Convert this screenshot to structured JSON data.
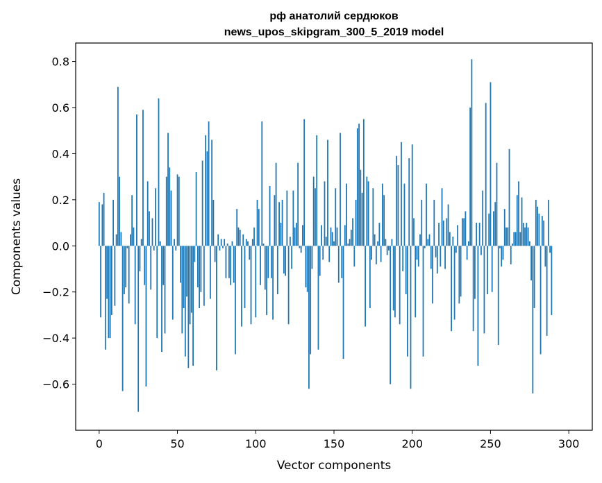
{
  "chart_data": {
    "type": "bar",
    "title": "рф анатолий сердюков",
    "subtitle": "news_upos_skipgram_300_5_2019 model",
    "xlabel": "Vector components",
    "ylabel": "Components values",
    "xlim": [
      -15,
      315
    ],
    "ylim": [
      -0.8,
      0.88
    ],
    "x_ticks": [
      {
        "value": 0,
        "label": "0"
      },
      {
        "value": 50,
        "label": "50"
      },
      {
        "value": 100,
        "label": "100"
      },
      {
        "value": 150,
        "label": "150"
      },
      {
        "value": 200,
        "label": "200"
      },
      {
        "value": 250,
        "label": "250"
      },
      {
        "value": 300,
        "label": "300"
      }
    ],
    "y_ticks": [
      {
        "value": -0.6,
        "label": "−0.6"
      },
      {
        "value": -0.4,
        "label": "−0.4"
      },
      {
        "value": -0.2,
        "label": "−0.2"
      },
      {
        "value": 0.0,
        "label": "0.0"
      },
      {
        "value": 0.2,
        "label": "0.2"
      },
      {
        "value": 0.4,
        "label": "0.4"
      },
      {
        "value": 0.6,
        "label": "0.6"
      },
      {
        "value": 0.8,
        "label": "0.8"
      }
    ],
    "bar_color": "#1f77b4",
    "grid": false,
    "values": [
      0.19,
      -0.31,
      0.18,
      0.23,
      -0.45,
      -0.23,
      -0.4,
      -0.4,
      -0.3,
      0.2,
      -0.26,
      0.05,
      0.69,
      0.3,
      0.06,
      -0.63,
      -0.21,
      -0.18,
      -0.01,
      -0.25,
      0.05,
      0.22,
      0.08,
      -0.34,
      0.57,
      -0.72,
      -0.11,
      0.03,
      0.59,
      -0.17,
      -0.61,
      0.28,
      0.15,
      -0.19,
      0.12,
      -0.02,
      0.25,
      -0.4,
      0.64,
      0.02,
      -0.46,
      -0.17,
      -0.38,
      0.3,
      0.49,
      0.34,
      0.24,
      -0.32,
      0.03,
      -0.02,
      0.31,
      0.3,
      -0.16,
      -0.38,
      -0.27,
      -0.48,
      -0.22,
      -0.53,
      -0.34,
      -0.29,
      -0.52,
      -0.07,
      0.32,
      -0.18,
      -0.27,
      -0.2,
      0.37,
      -0.26,
      0.48,
      0.41,
      0.54,
      -0.23,
      0.46,
      0.2,
      -0.07,
      -0.54,
      0.05,
      -0.02,
      0.03,
      -0.01,
      0.03,
      -0.14,
      0.01,
      -0.14,
      -0.17,
      0.02,
      -0.16,
      -0.47,
      0.16,
      0.08,
      0.07,
      -0.35,
      0.05,
      -0.27,
      0.03,
      0.02,
      -0.06,
      -0.34,
      0.03,
      0.08,
      -0.31,
      0.2,
      0.16,
      -0.17,
      0.54,
      0.01,
      -0.19,
      -0.3,
      -0.14,
      0.26,
      -0.14,
      -0.32,
      0.22,
      0.36,
      -0.21,
      0.19,
      0.1,
      0.2,
      -0.12,
      -0.13,
      0.24,
      -0.34,
      0.04,
      -0.1,
      0.24,
      0.08,
      0.1,
      0.36,
      -0.01,
      -0.03,
      0.09,
      0.55,
      -0.18,
      -0.2,
      -0.62,
      -0.47,
      -0.1,
      0.3,
      0.25,
      0.48,
      -0.45,
      -0.13,
      0.09,
      -0.06,
      0.28,
      0.04,
      0.46,
      -0.07,
      0.08,
      0.06,
      0.02,
      0.25,
      0.08,
      -0.16,
      0.49,
      -0.14,
      -0.49,
      0.09,
      0.27,
      0.01,
      0.03,
      0.07,
      0.12,
      -0.09,
      0.2,
      0.51,
      0.53,
      0.33,
      0.23,
      0.55,
      -0.35,
      0.3,
      0.28,
      -0.27,
      -0.06,
      0.25,
      0.05,
      -0.08,
      0.02,
      0.1,
      -0.07,
      0.27,
      0.22,
      0.03,
      -0.04,
      -0.02,
      -0.6,
      0.03,
      -0.28,
      -0.31,
      0.39,
      0.35,
      -0.34,
      0.45,
      -0.11,
      0.27,
      -0.21,
      -0.48,
      0.38,
      -0.62,
      0.44,
      0.12,
      -0.31,
      -0.06,
      -0.09,
      0.05,
      0.2,
      -0.48,
      -0.01,
      0.27,
      0.03,
      0.05,
      -0.1,
      -0.25,
      0.2,
      -0.05,
      -0.12,
      0.1,
      -0.09,
      0.25,
      0.11,
      -0.1,
      0.12,
      0.18,
      0.06,
      -0.37,
      0.04,
      -0.32,
      -0.03,
      0.09,
      -0.25,
      -0.22,
      0.12,
      0.12,
      0.15,
      -0.06,
      0.02,
      0.6,
      0.81,
      -0.37,
      -0.23,
      0.1,
      -0.52,
      0.1,
      -0.04,
      0.24,
      -0.38,
      0.62,
      -0.21,
      0.14,
      0.71,
      -0.2,
      0.15,
      0.19,
      0.36,
      -0.43,
      -0.01,
      -0.09,
      -0.06,
      0.16,
      0.08,
      0.08,
      0.42,
      -0.08,
      0.01,
      0.06,
      0.06,
      0.22,
      0.28,
      0.06,
      0.21,
      0.1,
      0.08,
      0.1,
      0.08,
      0.02,
      -0.15,
      -0.64,
      -0.27,
      0.2,
      0.17,
      0.14,
      -0.47,
      0.13,
      0.11,
      -0.09,
      -0.39,
      0.2,
      -0.03,
      -0.3
    ]
  }
}
